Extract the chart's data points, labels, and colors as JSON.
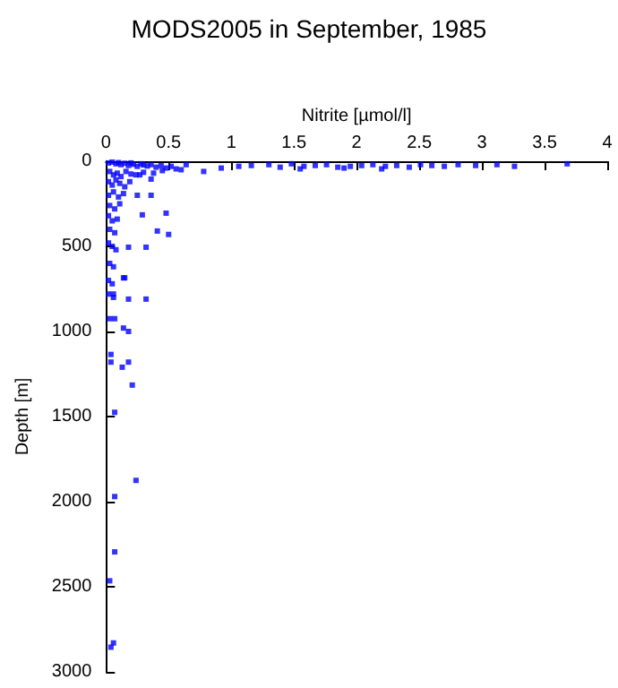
{
  "chart_data": {
    "type": "scatter",
    "title": "MODS2005 in September, 1985",
    "xlabel": "Nitrite [µmol/l]",
    "ylabel": "Depth [m]",
    "xlim": [
      0,
      4
    ],
    "ylim": [
      3000,
      0
    ],
    "xticks": [
      0,
      0.5,
      1,
      1.5,
      2,
      2.5,
      3,
      3.5,
      4
    ],
    "yticks": [
      0,
      500,
      1000,
      1500,
      2000,
      2500,
      3000
    ],
    "grid": false,
    "marker": "square",
    "series": [
      {
        "color": "#0000ff",
        "x": [
          0.02,
          0.05,
          0.08,
          0.1,
          0.12,
          0.15,
          0.18,
          0.2,
          0.22,
          0.25,
          0.28,
          0.3,
          0.33,
          0.36,
          0.4,
          0.44,
          0.48,
          0.52,
          0.56,
          0.6,
          0.64,
          0.78,
          0.92,
          1.06,
          1.16,
          1.3,
          1.39,
          1.48,
          1.58,
          1.67,
          1.76,
          1.85,
          1.95,
          2.04,
          2.13,
          2.23,
          2.32,
          2.42,
          2.51,
          2.6,
          2.7,
          2.81,
          2.95,
          3.12,
          3.26,
          3.68,
          0.03,
          0.06,
          0.09,
          0.12,
          0.16,
          0.2,
          0.24,
          0.3,
          0.38,
          0.45,
          1.55,
          1.9,
          2.2,
          0.02,
          0.05,
          0.08,
          0.11,
          0.15,
          0.19,
          0.27,
          0.36,
          0.02,
          0.06,
          0.1,
          0.14,
          0.25,
          0.36,
          0.03,
          0.07,
          0.11,
          0.02,
          0.05,
          0.09,
          0.29,
          0.48,
          0.03,
          0.07,
          0.41,
          0.5,
          0.02,
          0.05,
          0.08,
          0.18,
          0.32,
          0.03,
          0.06,
          0.02,
          0.05,
          0.15,
          0.14,
          0.02,
          0.06,
          0.18,
          0.32,
          0.06,
          0.03,
          0.07,
          0.14,
          0.18,
          0.04,
          0.04,
          0.13,
          0.18,
          0.21,
          0.07,
          0.24,
          0.07,
          0.07,
          0.03,
          0.06,
          0.04
        ],
        "values": [
          10,
          5,
          15,
          8,
          20,
          12,
          25,
          10,
          18,
          30,
          15,
          22,
          28,
          20,
          35,
          25,
          40,
          30,
          45,
          50,
          20,
          60,
          40,
          30,
          25,
          20,
          35,
          15,
          30,
          25,
          20,
          35,
          30,
          25,
          20,
          30,
          25,
          35,
          20,
          25,
          30,
          20,
          25,
          20,
          30,
          15,
          60,
          80,
          70,
          90,
          60,
          75,
          80,
          65,
          70,
          55,
          45,
          40,
          45,
          120,
          140,
          110,
          130,
          150,
          120,
          80,
          105,
          200,
          180,
          210,
          190,
          200,
          200,
          260,
          280,
          250,
          320,
          350,
          340,
          315,
          305,
          400,
          420,
          410,
          430,
          480,
          500,
          520,
          505,
          505,
          600,
          620,
          700,
          720,
          685,
          685,
          780,
          800,
          810,
          810,
          780,
          925,
          925,
          980,
          1000,
          1135,
          1180,
          1210,
          1180,
          1315,
          1475,
          1875,
          1970,
          2295,
          2465,
          2830,
          2855
        ]
      }
    ]
  }
}
